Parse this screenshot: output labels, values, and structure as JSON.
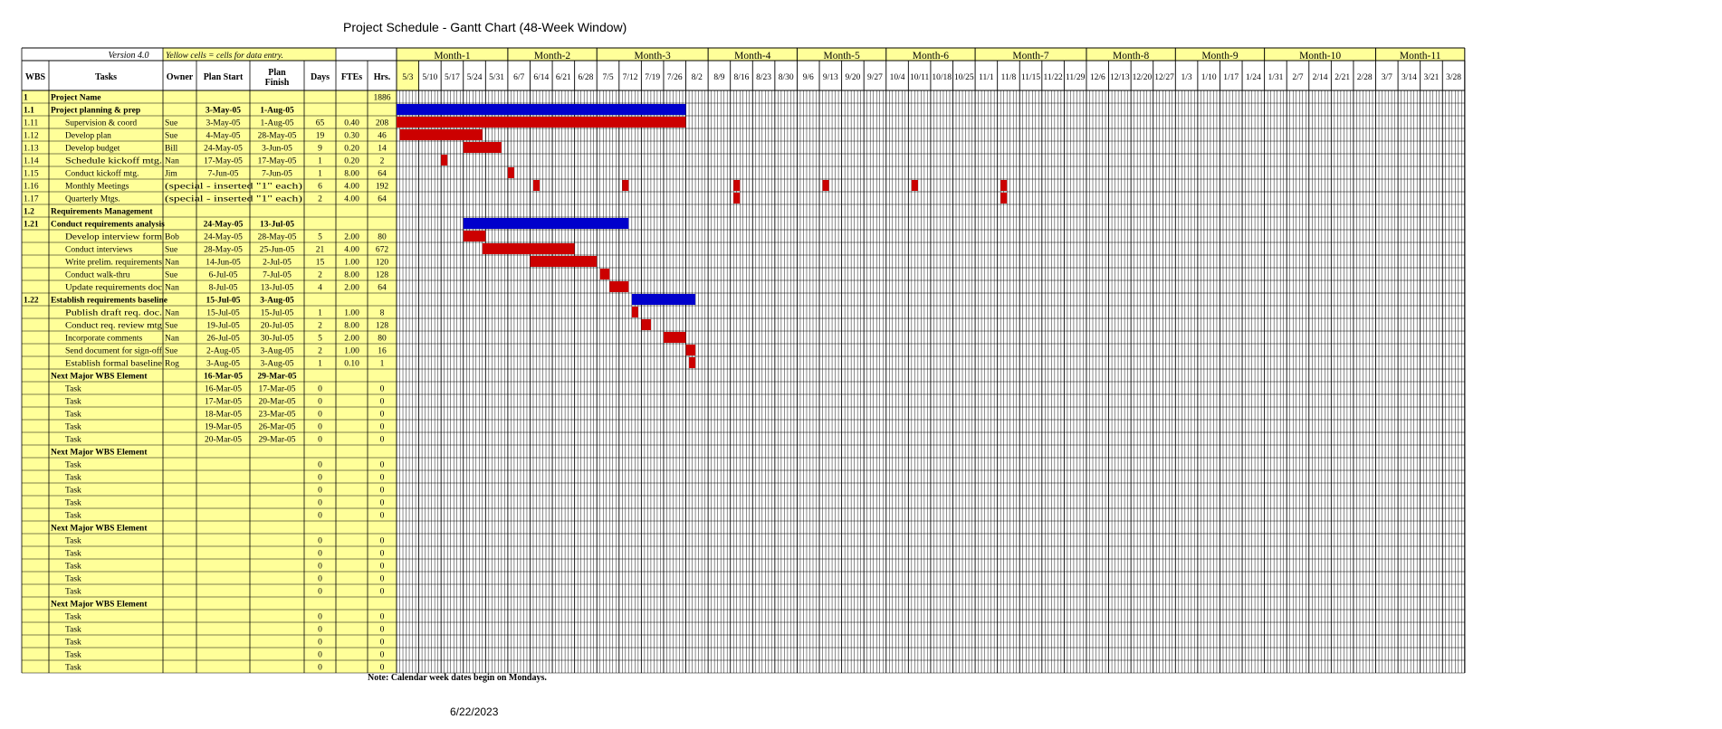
{
  "title": "Project Schedule - Gantt Chart (48-Week Window)",
  "version_label": "Version 4.0",
  "yellow_note": "Yellow cells = cells for data entry.",
  "footnote": "Note: Calendar week dates begin on Mondays.",
  "print_date": "6/22/2023",
  "colors": {
    "input_yellow": "#ffff99",
    "summary_bar": "#0000cc",
    "task_bar": "#cc0000",
    "grid": "#000000"
  },
  "columns": [
    "WBS",
    "Tasks",
    "Owner",
    "Plan Start",
    "Plan Finish",
    "Days",
    "FTEs",
    "Hrs."
  ],
  "months": [
    "Month-1",
    "Month-2",
    "Month-3",
    "Month-4",
    "Month-5",
    "Month-6",
    "Month-7",
    "Month-8",
    "Month-9",
    "Month-10",
    "Month-11"
  ],
  "month_week_counts": [
    5,
    4,
    5,
    4,
    4,
    4,
    5,
    4,
    4,
    5,
    4
  ],
  "weeks": [
    "5/3",
    "5/10",
    "5/17",
    "5/24",
    "5/31",
    "6/7",
    "6/14",
    "6/21",
    "6/28",
    "7/5",
    "7/12",
    "7/19",
    "7/26",
    "8/2",
    "8/9",
    "8/16",
    "8/23",
    "8/30",
    "9/6",
    "9/13",
    "9/20",
    "9/27",
    "10/4",
    "10/11",
    "10/18",
    "10/25",
    "11/1",
    "11/8",
    "11/15",
    "11/22",
    "11/29",
    "12/6",
    "12/13",
    "12/20",
    "12/27",
    "1/3",
    "1/10",
    "1/17",
    "1/24",
    "1/31",
    "2/7",
    "2/14",
    "2/21",
    "2/28",
    "3/7",
    "3/14",
    "3/21",
    "3/28"
  ],
  "timeline": {
    "days_per_week": 7
  },
  "rows": [
    {
      "wbs": "1",
      "task": "Project Name",
      "owner": "",
      "start": "",
      "finish": "",
      "days": "",
      "ftes": "",
      "hrs": "1886",
      "style": "bold",
      "indent": 0,
      "bars": []
    },
    {
      "wbs": "1.1",
      "task": "Project planning & prep",
      "owner": "",
      "start": "3-May-05",
      "finish": "1-Aug-05",
      "days": "",
      "ftes": "",
      "hrs": "",
      "style": "bold",
      "indent": 0,
      "bars": [
        {
          "kind": "summary",
          "start_day": 0,
          "end_day": 91
        }
      ]
    },
    {
      "wbs": "1.11",
      "task": "Supervision & coord",
      "owner": "Sue",
      "start": "3-May-05",
      "finish": "1-Aug-05",
      "days": "65",
      "ftes": "0.40",
      "hrs": "208",
      "style": "normal",
      "indent": 1,
      "bars": [
        {
          "kind": "task",
          "start_day": 0,
          "end_day": 91
        }
      ]
    },
    {
      "wbs": "1.12",
      "task": "Develop plan",
      "owner": "Sue",
      "start": "4-May-05",
      "finish": "28-May-05",
      "days": "19",
      "ftes": "0.30",
      "hrs": "46",
      "style": "normal",
      "indent": 1,
      "bars": [
        {
          "kind": "task",
          "start_day": 1,
          "end_day": 27
        }
      ]
    },
    {
      "wbs": "1.13",
      "task": "Develop budget",
      "owner": "Bill",
      "start": "24-May-05",
      "finish": "3-Jun-05",
      "days": "9",
      "ftes": "0.20",
      "hrs": "14",
      "style": "normal",
      "indent": 1,
      "bars": [
        {
          "kind": "task",
          "start_day": 21,
          "end_day": 33
        }
      ]
    },
    {
      "wbs": "1.14",
      "task": "Schedule kickoff mtg.",
      "owner": "Nan",
      "start": "17-May-05",
      "finish": "17-May-05",
      "days": "1",
      "ftes": "0.20",
      "hrs": "2",
      "style": "normal",
      "indent": 1,
      "bars": [
        {
          "kind": "task",
          "start_day": 14,
          "end_day": 16
        }
      ]
    },
    {
      "wbs": "1.15",
      "task": "Conduct kickoff mtg.",
      "owner": "Jim",
      "start": "7-Jun-05",
      "finish": "7-Jun-05",
      "days": "1",
      "ftes": "8.00",
      "hrs": "64",
      "style": "normal",
      "indent": 1,
      "bars": [
        {
          "kind": "task",
          "start_day": 35,
          "end_day": 37
        }
      ]
    },
    {
      "wbs": "1.16",
      "task": "Monthly Meetings",
      "owner": "(special - inserted \"1\" each)",
      "start": "",
      "finish": "",
      "days": "6",
      "ftes": "4.00",
      "hrs": "192",
      "style": "normal",
      "indent": 1,
      "bars": [
        {
          "kind": "task",
          "start_day": 43,
          "end_day": 45
        },
        {
          "kind": "task",
          "start_day": 71,
          "end_day": 73
        },
        {
          "kind": "task",
          "start_day": 106,
          "end_day": 108
        },
        {
          "kind": "task",
          "start_day": 134,
          "end_day": 136
        },
        {
          "kind": "task",
          "start_day": 162,
          "end_day": 164
        },
        {
          "kind": "task",
          "start_day": 190,
          "end_day": 192
        }
      ]
    },
    {
      "wbs": "1.17",
      "task": "Quarterly Mtgs.",
      "owner": "(special - inserted \"1\" each)",
      "start": "",
      "finish": "",
      "days": "2",
      "ftes": "4.00",
      "hrs": "64",
      "style": "normal",
      "indent": 1,
      "bars": [
        {
          "kind": "task",
          "start_day": 106,
          "end_day": 108
        },
        {
          "kind": "task",
          "start_day": 190,
          "end_day": 192
        }
      ]
    },
    {
      "wbs": "1.2",
      "task": "Requirements Management",
      "owner": "",
      "start": "",
      "finish": "",
      "days": "",
      "ftes": "",
      "hrs": "",
      "style": "bold",
      "indent": 0,
      "bars": []
    },
    {
      "wbs": "1.21",
      "task": "Conduct requirements analysis",
      "owner": "",
      "start": "24-May-05",
      "finish": "13-Jul-05",
      "days": "",
      "ftes": "",
      "hrs": "",
      "style": "bold",
      "indent": 0,
      "bars": [
        {
          "kind": "summary",
          "start_day": 21,
          "end_day": 73
        }
      ]
    },
    {
      "wbs": "",
      "task": "Develop interview form",
      "owner": "Bob",
      "start": "24-May-05",
      "finish": "28-May-05",
      "days": "5",
      "ftes": "2.00",
      "hrs": "80",
      "style": "normal",
      "indent": 1,
      "bars": [
        {
          "kind": "task",
          "start_day": 21,
          "end_day": 28
        }
      ]
    },
    {
      "wbs": "",
      "task": "Conduct interviews",
      "owner": "Sue",
      "start": "28-May-05",
      "finish": "25-Jun-05",
      "days": "21",
      "ftes": "4.00",
      "hrs": "672",
      "style": "normal",
      "indent": 1,
      "bars": [
        {
          "kind": "task",
          "start_day": 27,
          "end_day": 56
        }
      ]
    },
    {
      "wbs": "",
      "task": "Write prelim. requirements",
      "owner": "Nan",
      "start": "14-Jun-05",
      "finish": "2-Jul-05",
      "days": "15",
      "ftes": "1.00",
      "hrs": "120",
      "style": "normal",
      "indent": 1,
      "bars": [
        {
          "kind": "task",
          "start_day": 42,
          "end_day": 63
        }
      ]
    },
    {
      "wbs": "",
      "task": "Conduct walk-thru",
      "owner": "Sue",
      "start": "6-Jul-05",
      "finish": "7-Jul-05",
      "days": "2",
      "ftes": "8.00",
      "hrs": "128",
      "style": "normal",
      "indent": 1,
      "bars": [
        {
          "kind": "task",
          "start_day": 64,
          "end_day": 67
        }
      ]
    },
    {
      "wbs": "",
      "task": "Update requirements doc",
      "owner": "Nan",
      "start": "8-Jul-05",
      "finish": "13-Jul-05",
      "days": "4",
      "ftes": "2.00",
      "hrs": "64",
      "style": "normal",
      "indent": 1,
      "bars": [
        {
          "kind": "task",
          "start_day": 67,
          "end_day": 73
        }
      ]
    },
    {
      "wbs": "1.22",
      "task": "Establish requirements baseline",
      "owner": "",
      "start": "15-Jul-05",
      "finish": "3-Aug-05",
      "days": "",
      "ftes": "",
      "hrs": "",
      "style": "bold",
      "indent": 0,
      "bars": [
        {
          "kind": "summary",
          "start_day": 74,
          "end_day": 94
        }
      ]
    },
    {
      "wbs": "",
      "task": "Publish draft req. doc.",
      "owner": "Nan",
      "start": "15-Jul-05",
      "finish": "15-Jul-05",
      "days": "1",
      "ftes": "1.00",
      "hrs": "8",
      "style": "normal",
      "indent": 1,
      "bars": [
        {
          "kind": "task",
          "start_day": 74,
          "end_day": 76
        }
      ]
    },
    {
      "wbs": "",
      "task": "Conduct req. review mtg",
      "owner": "Sue",
      "start": "19-Jul-05",
      "finish": "20-Jul-05",
      "days": "2",
      "ftes": "8.00",
      "hrs": "128",
      "style": "normal",
      "indent": 1,
      "bars": [
        {
          "kind": "task",
          "start_day": 77,
          "end_day": 80
        }
      ]
    },
    {
      "wbs": "",
      "task": "Incorporate comments",
      "owner": "Nan",
      "start": "26-Jul-05",
      "finish": "30-Jul-05",
      "days": "5",
      "ftes": "2.00",
      "hrs": "80",
      "style": "normal",
      "indent": 1,
      "bars": [
        {
          "kind": "task",
          "start_day": 84,
          "end_day": 91
        }
      ]
    },
    {
      "wbs": "",
      "task": "Send document for sign-off",
      "owner": "Sue",
      "start": "2-Aug-05",
      "finish": "3-Aug-05",
      "days": "2",
      "ftes": "1.00",
      "hrs": "16",
      "style": "normal",
      "indent": 1,
      "bars": [
        {
          "kind": "task",
          "start_day": 91,
          "end_day": 94
        }
      ]
    },
    {
      "wbs": "",
      "task": "Establish formal baseline",
      "owner": "Rog",
      "start": "3-Aug-05",
      "finish": "3-Aug-05",
      "days": "1",
      "ftes": "0.10",
      "hrs": "1",
      "style": "normal",
      "indent": 1,
      "bars": [
        {
          "kind": "task",
          "start_day": 92,
          "end_day": 94
        }
      ]
    },
    {
      "wbs": "",
      "task": "Next Major WBS Element",
      "owner": "",
      "start": "16-Mar-05",
      "finish": "29-Mar-05",
      "days": "",
      "ftes": "",
      "hrs": "",
      "style": "bold",
      "indent": 0,
      "bars": []
    },
    {
      "wbs": "",
      "task": "Task",
      "owner": "",
      "start": "16-Mar-05",
      "finish": "17-Mar-05",
      "days": "0",
      "ftes": "",
      "hrs": "0",
      "style": "normal",
      "indent": 1,
      "bars": []
    },
    {
      "wbs": "",
      "task": "Task",
      "owner": "",
      "start": "17-Mar-05",
      "finish": "20-Mar-05",
      "days": "0",
      "ftes": "",
      "hrs": "0",
      "style": "normal",
      "indent": 1,
      "bars": []
    },
    {
      "wbs": "",
      "task": "Task",
      "owner": "",
      "start": "18-Mar-05",
      "finish": "23-Mar-05",
      "days": "0",
      "ftes": "",
      "hrs": "0",
      "style": "normal",
      "indent": 1,
      "bars": []
    },
    {
      "wbs": "",
      "task": "Task",
      "owner": "",
      "start": "19-Mar-05",
      "finish": "26-Mar-05",
      "days": "0",
      "ftes": "",
      "hrs": "0",
      "style": "normal",
      "indent": 1,
      "bars": []
    },
    {
      "wbs": "",
      "task": "Task",
      "owner": "",
      "start": "20-Mar-05",
      "finish": "29-Mar-05",
      "days": "0",
      "ftes": "",
      "hrs": "0",
      "style": "normal",
      "indent": 1,
      "bars": []
    },
    {
      "wbs": "",
      "task": "Next Major WBS Element",
      "owner": "",
      "start": "",
      "finish": "",
      "days": "",
      "ftes": "",
      "hrs": "",
      "style": "bold",
      "indent": 0,
      "bars": []
    },
    {
      "wbs": "",
      "task": "Task",
      "owner": "",
      "start": "",
      "finish": "",
      "days": "0",
      "ftes": "",
      "hrs": "0",
      "style": "normal",
      "indent": 1,
      "bars": []
    },
    {
      "wbs": "",
      "task": "Task",
      "owner": "",
      "start": "",
      "finish": "",
      "days": "0",
      "ftes": "",
      "hrs": "0",
      "style": "normal",
      "indent": 1,
      "bars": []
    },
    {
      "wbs": "",
      "task": "Task",
      "owner": "",
      "start": "",
      "finish": "",
      "days": "0",
      "ftes": "",
      "hrs": "0",
      "style": "normal",
      "indent": 1,
      "bars": []
    },
    {
      "wbs": "",
      "task": "Task",
      "owner": "",
      "start": "",
      "finish": "",
      "days": "0",
      "ftes": "",
      "hrs": "0",
      "style": "normal",
      "indent": 1,
      "bars": []
    },
    {
      "wbs": "",
      "task": "Task",
      "owner": "",
      "start": "",
      "finish": "",
      "days": "0",
      "ftes": "",
      "hrs": "0",
      "style": "normal",
      "indent": 1,
      "bars": []
    },
    {
      "wbs": "",
      "task": "Next Major WBS Element",
      "owner": "",
      "start": "",
      "finish": "",
      "days": "",
      "ftes": "",
      "hrs": "",
      "style": "bold",
      "indent": 0,
      "bars": []
    },
    {
      "wbs": "",
      "task": "Task",
      "owner": "",
      "start": "",
      "finish": "",
      "days": "0",
      "ftes": "",
      "hrs": "0",
      "style": "normal",
      "indent": 1,
      "bars": []
    },
    {
      "wbs": "",
      "task": "Task",
      "owner": "",
      "start": "",
      "finish": "",
      "days": "0",
      "ftes": "",
      "hrs": "0",
      "style": "normal",
      "indent": 1,
      "bars": []
    },
    {
      "wbs": "",
      "task": "Task",
      "owner": "",
      "start": "",
      "finish": "",
      "days": "0",
      "ftes": "",
      "hrs": "0",
      "style": "normal",
      "indent": 1,
      "bars": []
    },
    {
      "wbs": "",
      "task": "Task",
      "owner": "",
      "start": "",
      "finish": "",
      "days": "0",
      "ftes": "",
      "hrs": "0",
      "style": "normal",
      "indent": 1,
      "bars": []
    },
    {
      "wbs": "",
      "task": "Task",
      "owner": "",
      "start": "",
      "finish": "",
      "days": "0",
      "ftes": "",
      "hrs": "0",
      "style": "normal",
      "indent": 1,
      "bars": []
    },
    {
      "wbs": "",
      "task": "Next Major WBS Element",
      "owner": "",
      "start": "",
      "finish": "",
      "days": "",
      "ftes": "",
      "hrs": "",
      "style": "bold",
      "indent": 0,
      "bars": []
    },
    {
      "wbs": "",
      "task": "Task",
      "owner": "",
      "start": "",
      "finish": "",
      "days": "0",
      "ftes": "",
      "hrs": "0",
      "style": "normal",
      "indent": 1,
      "bars": []
    },
    {
      "wbs": "",
      "task": "Task",
      "owner": "",
      "start": "",
      "finish": "",
      "days": "0",
      "ftes": "",
      "hrs": "0",
      "style": "normal",
      "indent": 1,
      "bars": []
    },
    {
      "wbs": "",
      "task": "Task",
      "owner": "",
      "start": "",
      "finish": "",
      "days": "0",
      "ftes": "",
      "hrs": "0",
      "style": "normal",
      "indent": 1,
      "bars": []
    },
    {
      "wbs": "",
      "task": "Task",
      "owner": "",
      "start": "",
      "finish": "",
      "days": "0",
      "ftes": "",
      "hrs": "0",
      "style": "normal",
      "indent": 1,
      "bars": []
    },
    {
      "wbs": "",
      "task": "Task",
      "owner": "",
      "start": "",
      "finish": "",
      "days": "0",
      "ftes": "",
      "hrs": "0",
      "style": "normal",
      "indent": 1,
      "bars": []
    }
  ]
}
